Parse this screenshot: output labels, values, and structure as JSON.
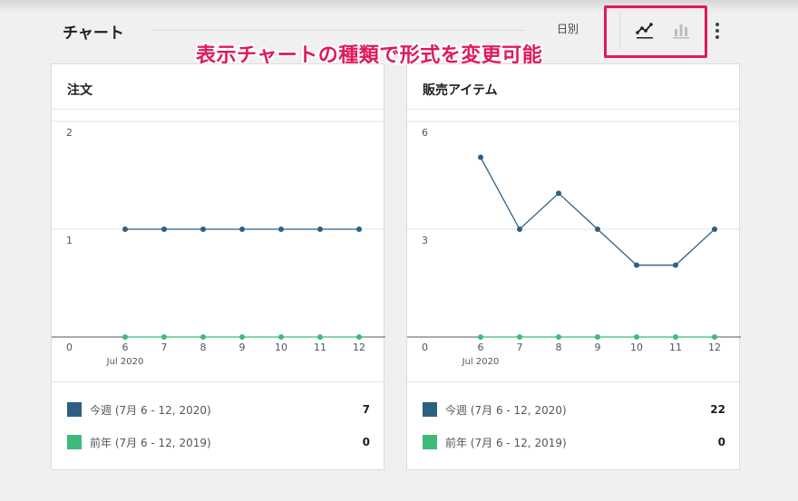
{
  "colors": {
    "current": "#2c6083",
    "previous": "#3dbb7a",
    "accent": "#e0195a"
  },
  "header": {
    "title": "チャート",
    "interval": "日別",
    "line_icon": "line-chart-icon",
    "bar_icon": "bar-chart-icon",
    "more_icon": "ellipsis-vertical-icon"
  },
  "annotation": "表示チャートの種類で形式を変更可能",
  "charts": [
    {
      "title": "注文",
      "legend": [
        {
          "label": "今週 (7月 6 - 12, 2020)",
          "value": "7"
        },
        {
          "label": "前年 (7月 6 - 12, 2019)",
          "value": "0"
        }
      ]
    },
    {
      "title": "販売アイテム",
      "legend": [
        {
          "label": "今週 (7月 6 - 12, 2020)",
          "value": "22"
        },
        {
          "label": "前年 (7月 6 - 12, 2019)",
          "value": "0"
        }
      ]
    }
  ],
  "chart_data": [
    {
      "type": "line",
      "title": "注文",
      "categories": [
        "6",
        "7",
        "8",
        "9",
        "10",
        "11",
        "12"
      ],
      "x_sublabel": "Jul 2020",
      "y_ticks": [
        "0",
        "1",
        "2"
      ],
      "ylim": [
        0,
        2
      ],
      "grid": true,
      "series": [
        {
          "name": "今週 (7月 6 - 12, 2020)",
          "values": [
            1,
            1,
            1,
            1,
            1,
            1,
            1
          ]
        },
        {
          "name": "前年 (7月 6 - 12, 2019)",
          "values": [
            0,
            0,
            0,
            0,
            0,
            0,
            0
          ]
        }
      ]
    },
    {
      "type": "line",
      "title": "販売アイテム",
      "categories": [
        "6",
        "7",
        "8",
        "9",
        "10",
        "11",
        "12"
      ],
      "x_sublabel": "Jul 2020",
      "y_ticks": [
        "0",
        "3",
        "6"
      ],
      "ylim": [
        0,
        6
      ],
      "grid": true,
      "series": [
        {
          "name": "今週 (7月 6 - 12, 2020)",
          "values": [
            5,
            3,
            4,
            3,
            2,
            2,
            3
          ]
        },
        {
          "name": "前年 (7月 6 - 12, 2019)",
          "values": [
            0,
            0,
            0,
            0,
            0,
            0,
            0
          ]
        }
      ]
    }
  ]
}
